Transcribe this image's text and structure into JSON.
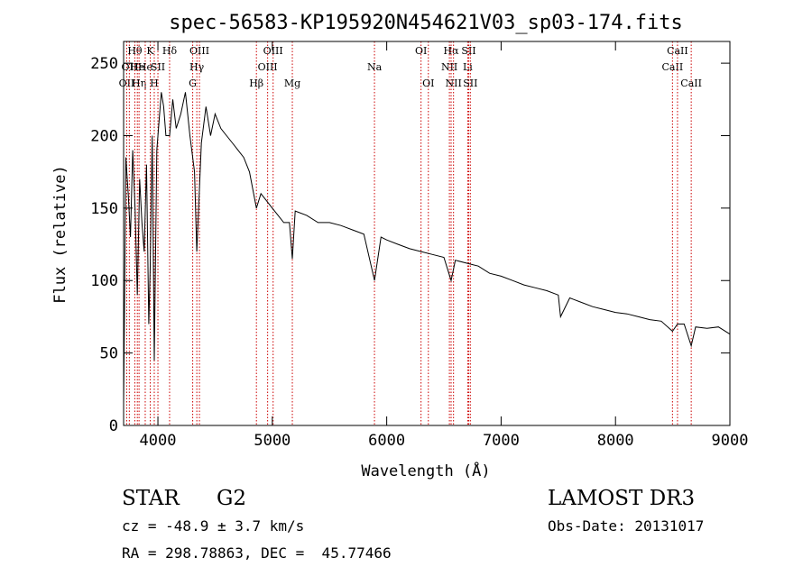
{
  "chart_data": {
    "type": "line",
    "title": "spec-56583-KP195920N454621V03_sp03-174.fits",
    "xlabel": "Wavelength (Å)",
    "ylabel": "Flux (relative)",
    "xlim": [
      3700,
      9000
    ],
    "ylim": [
      0,
      265
    ],
    "xticks": [
      4000,
      5000,
      6000,
      7000,
      8000,
      9000
    ],
    "yticks": [
      0,
      50,
      100,
      150,
      200,
      250
    ],
    "grid": false,
    "line_color": "#000000",
    "marker_color": "#cc0000",
    "series": [
      {
        "x": [
          3700,
          3720,
          3740,
          3760,
          3780,
          3800,
          3820,
          3840,
          3860,
          3880,
          3900,
          3920,
          3933,
          3950,
          3968,
          3990,
          4010,
          4030,
          4050,
          4070,
          4102,
          4130,
          4160,
          4200,
          4240,
          4280,
          4320,
          4340,
          4380,
          4420,
          4460,
          4500,
          4550,
          4600,
          4650,
          4700,
          4750,
          4800,
          4861,
          4900,
          4950,
          5000,
          5050,
          5100,
          5150,
          5175,
          5200,
          5300,
          5400,
          5500,
          5600,
          5700,
          5800,
          5893,
          5950,
          6000,
          6100,
          6200,
          6300,
          6400,
          6500,
          6563,
          6600,
          6700,
          6800,
          6900,
          7000,
          7100,
          7200,
          7300,
          7400,
          7500,
          7520,
          7600,
          7700,
          7800,
          7900,
          8000,
          8100,
          8200,
          8300,
          8400,
          8498,
          8542,
          8600,
          8662,
          8700,
          8800,
          8900,
          9000
        ],
        "y": [
          15,
          185,
          160,
          130,
          190,
          150,
          90,
          170,
          140,
          120,
          180,
          70,
          110,
          200,
          45,
          190,
          210,
          230,
          220,
          200,
          200,
          225,
          205,
          215,
          230,
          200,
          175,
          120,
          195,
          220,
          200,
          215,
          205,
          200,
          195,
          190,
          185,
          175,
          150,
          160,
          155,
          150,
          145,
          140,
          140,
          115,
          148,
          145,
          140,
          140,
          138,
          135,
          132,
          100,
          130,
          128,
          125,
          122,
          120,
          118,
          116,
          100,
          114,
          112,
          110,
          105,
          103,
          100,
          97,
          95,
          93,
          90,
          75,
          88,
          85,
          82,
          80,
          78,
          77,
          75,
          73,
          72,
          65,
          70,
          70,
          55,
          68,
          67,
          68,
          63
        ]
      }
    ],
    "line_markers": [
      {
        "x": 3727,
        "label": "OII",
        "row": 2
      },
      {
        "x": 3750,
        "label": "OII",
        "row": 1
      },
      {
        "x": 3798,
        "label": "Hθ",
        "row": 0
      },
      {
        "x": 3820,
        "label": "He",
        "row": 1
      },
      {
        "x": 3835,
        "label": "Hη",
        "row": 2
      },
      {
        "x": 3889,
        "label": "He",
        "row": 1
      },
      {
        "x": 3933,
        "label": "K",
        "row": 0
      },
      {
        "x": 3968,
        "label": "H",
        "row": 2
      },
      {
        "x": 4000,
        "label": "SII",
        "row": 1
      },
      {
        "x": 4102,
        "label": "Hδ",
        "row": 0
      },
      {
        "x": 4304,
        "label": "G",
        "row": 2
      },
      {
        "x": 4340,
        "label": "Hγ",
        "row": 1
      },
      {
        "x": 4363,
        "label": "OIII",
        "row": 0
      },
      {
        "x": 4861,
        "label": "Hβ",
        "row": 2
      },
      {
        "x": 4959,
        "label": "OIII",
        "row": 1
      },
      {
        "x": 5007,
        "label": "OIII",
        "row": 0
      },
      {
        "x": 5175,
        "label": "Mg",
        "row": 2
      },
      {
        "x": 5893,
        "label": "Na",
        "row": 1
      },
      {
        "x": 6300,
        "label": "OI",
        "row": 0
      },
      {
        "x": 6364,
        "label": "OI",
        "row": 2
      },
      {
        "x": 6548,
        "label": "NII",
        "row": 1
      },
      {
        "x": 6563,
        "label": "Hα",
        "row": 0
      },
      {
        "x": 6584,
        "label": "NII",
        "row": 2
      },
      {
        "x": 6708,
        "label": "Li",
        "row": 1
      },
      {
        "x": 6717,
        "label": "SII",
        "row": 0
      },
      {
        "x": 6731,
        "label": "SII",
        "row": 2
      },
      {
        "x": 8498,
        "label": "CaII",
        "row": 1
      },
      {
        "x": 8542,
        "label": "CaII",
        "row": 0
      },
      {
        "x": 8662,
        "label": "CaII",
        "row": 2
      }
    ]
  },
  "info": {
    "object_class": "STAR",
    "subclass": "G2",
    "survey": "LAMOST DR3",
    "velocity": "cz = -48.9 ± 3.7 km/s",
    "obs_date": "Obs-Date: 20131017",
    "coords": "RA = 298.78863, DEC =  45.77466"
  }
}
